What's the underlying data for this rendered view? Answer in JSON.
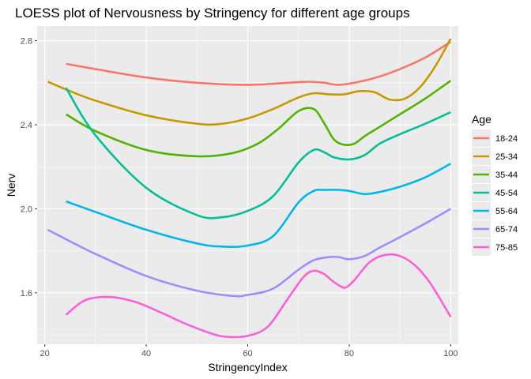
{
  "chart_data": {
    "type": "line",
    "title": "LOESS plot of Nervousness by Stringency for different age groups",
    "xlabel": "StringencyIndex",
    "ylabel": "Nerv",
    "xlim": [
      18.5,
      101.5
    ],
    "ylim": [
      1.355,
      2.87
    ],
    "x_ticks": [
      20,
      40,
      60,
      80,
      100
    ],
    "x_tick_labels": [
      "20",
      "40",
      "60",
      "80",
      "100"
    ],
    "y_ticks": [
      1.6,
      2.0,
      2.4,
      2.8
    ],
    "y_tick_labels": [
      "1.6",
      "2.0",
      "2.4",
      "2.8"
    ],
    "grid": true,
    "legend": {
      "title": "Age",
      "placement": "right"
    },
    "series": [
      {
        "name": "18-24",
        "color": "#F8766D",
        "x": [
          24.2,
          30,
          40,
          50,
          60,
          68,
          72,
          75,
          78,
          82,
          86,
          90,
          95,
          100
        ],
        "y": [
          2.69,
          2.665,
          2.625,
          2.6,
          2.59,
          2.6,
          2.605,
          2.6,
          2.59,
          2.605,
          2.63,
          2.665,
          2.72,
          2.795
        ]
      },
      {
        "name": "25-34",
        "color": "#C49A00",
        "x": [
          20.6,
          25,
          30,
          40,
          50,
          55,
          60,
          65,
          70,
          73,
          76,
          79,
          82,
          85,
          88,
          91,
          94,
          97,
          100
        ],
        "y": [
          2.605,
          2.56,
          2.515,
          2.445,
          2.405,
          2.405,
          2.43,
          2.475,
          2.53,
          2.55,
          2.545,
          2.545,
          2.56,
          2.555,
          2.52,
          2.525,
          2.58,
          2.68,
          2.81
        ]
      },
      {
        "name": "35-44",
        "color": "#53B400",
        "x": [
          24.2,
          30,
          40,
          50,
          57,
          62,
          66,
          70,
          73,
          75,
          77,
          79,
          81,
          83,
          86,
          90,
          95,
          100
        ],
        "y": [
          2.45,
          2.37,
          2.28,
          2.25,
          2.265,
          2.31,
          2.38,
          2.465,
          2.475,
          2.41,
          2.33,
          2.305,
          2.31,
          2.345,
          2.39,
          2.45,
          2.525,
          2.61
        ]
      },
      {
        "name": "45-54",
        "color": "#00C094",
        "x": [
          24.2,
          30,
          40,
          50,
          55,
          60,
          65,
          70,
          73,
          75,
          77,
          80,
          83,
          86,
          90,
          95,
          100
        ],
        "y": [
          2.575,
          2.35,
          2.1,
          1.97,
          1.96,
          1.99,
          2.06,
          2.22,
          2.28,
          2.27,
          2.245,
          2.235,
          2.255,
          2.31,
          2.355,
          2.405,
          2.46
        ]
      },
      {
        "name": "55-64",
        "color": "#00B6EB",
        "x": [
          24.2,
          30,
          40,
          50,
          55,
          60,
          65,
          70,
          73,
          75,
          78,
          80,
          83,
          86,
          90,
          95,
          100
        ],
        "y": [
          2.035,
          1.985,
          1.9,
          1.835,
          1.82,
          1.825,
          1.87,
          2.03,
          2.085,
          2.09,
          2.09,
          2.085,
          2.07,
          2.08,
          2.105,
          2.15,
          2.215
        ]
      },
      {
        "name": "65-74",
        "color": "#A58AFF",
        "x": [
          20.6,
          25,
          30,
          40,
          50,
          57,
          60,
          65,
          70,
          73,
          76,
          78,
          80,
          83,
          86,
          90,
          95,
          100
        ],
        "y": [
          1.9,
          1.845,
          1.785,
          1.68,
          1.61,
          1.585,
          1.59,
          1.62,
          1.71,
          1.755,
          1.77,
          1.77,
          1.76,
          1.775,
          1.815,
          1.865,
          1.93,
          2.0
        ]
      },
      {
        "name": "75-85",
        "color": "#FB61D7",
        "x": [
          24.2,
          28,
          33,
          38,
          43,
          48,
          53,
          56,
          60,
          64,
          68,
          71,
          73,
          75,
          76.5,
          78,
          79.3,
          81,
          84,
          87,
          90,
          93,
          96,
          100
        ],
        "y": [
          1.495,
          1.565,
          1.58,
          1.555,
          1.505,
          1.45,
          1.405,
          1.39,
          1.395,
          1.44,
          1.575,
          1.675,
          1.705,
          1.69,
          1.66,
          1.635,
          1.625,
          1.66,
          1.745,
          1.78,
          1.775,
          1.73,
          1.645,
          1.485
        ]
      }
    ]
  }
}
